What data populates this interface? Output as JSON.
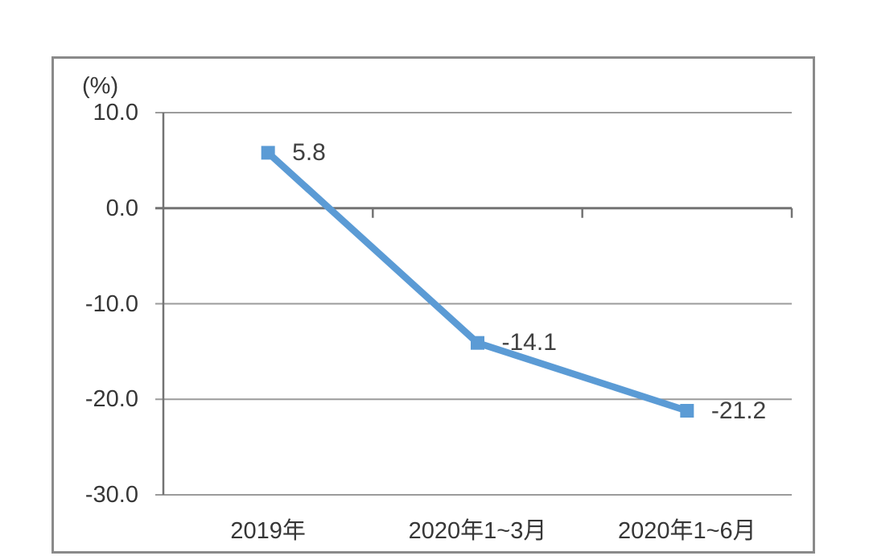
{
  "chart_data": {
    "type": "line",
    "unit_label": "(%)",
    "categories": [
      "2019年",
      "2020年1~3月",
      "2020年1~6月"
    ],
    "values": [
      5.8,
      -14.1,
      -21.2
    ],
    "point_labels": [
      "5.8",
      "-14.1",
      "-21.2"
    ],
    "yticks": [
      10,
      0,
      -10,
      -20,
      -30
    ],
    "ytick_labels": [
      "10.0",
      "0.0",
      "-10.0",
      "-20.0",
      "-30.0"
    ],
    "ylim": [
      -30,
      10
    ],
    "xlabel": "",
    "ylabel": "(%)",
    "title": "",
    "legend": "none",
    "grid": "horizontal",
    "marker": "square"
  },
  "colors": {
    "series_line": "#5B9BD5",
    "gridline": "#9b9b9b",
    "axis_line": "#737373",
    "border": "#8a8a8a",
    "label_text": "#404040"
  }
}
